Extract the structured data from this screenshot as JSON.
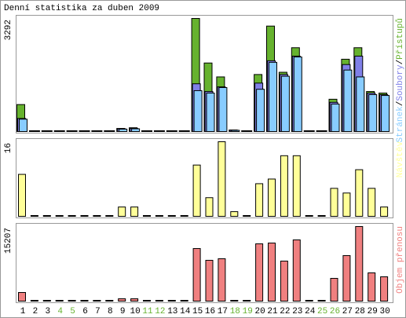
{
  "title": "Denní statistika za duben 2009",
  "chart_data": [
    {
      "type": "bar",
      "series": [
        {
          "name": "Přístupů",
          "color": "#66b22e",
          "values": [
            785,
            0,
            0,
            0,
            0,
            0,
            0,
            0,
            90,
            110,
            0,
            0,
            0,
            0,
            3292,
            1995,
            1590,
            45,
            0,
            1660,
            3070,
            1725,
            2440,
            0,
            0,
            940,
            2105,
            2440,
            1165,
            1120
          ]
        },
        {
          "name": "Soubory",
          "color": "#8080e8",
          "values": [
            380,
            0,
            0,
            0,
            0,
            0,
            0,
            0,
            80,
            90,
            0,
            0,
            0,
            0,
            1390,
            1165,
            1300,
            40,
            0,
            1410,
            2060,
            1660,
            2195,
            0,
            0,
            850,
            1950,
            2195,
            1120,
            1075
          ]
        },
        {
          "name": "Stránek",
          "color": "#88ccff",
          "values": [
            360,
            0,
            0,
            0,
            0,
            0,
            0,
            0,
            70,
            80,
            0,
            0,
            0,
            0,
            1190,
            1120,
            1280,
            35,
            0,
            1230,
            2015,
            1610,
            2170,
            0,
            0,
            800,
            1790,
            1590,
            1075,
            1050
          ]
        }
      ],
      "legend_separator": "/",
      "ylim": [
        0,
        3292
      ],
      "yticks": [
        3292
      ]
    },
    {
      "type": "bar",
      "series": [
        {
          "name": "Návštěv",
          "color": "#ffff99",
          "values": [
            9,
            0,
            0,
            0,
            0,
            0,
            0,
            0,
            2,
            2,
            0,
            0,
            0,
            0,
            11,
            4,
            16,
            1,
            0,
            7,
            8,
            13,
            13,
            0,
            0,
            6,
            5,
            10,
            6,
            2
          ]
        }
      ],
      "ylim": [
        0,
        16
      ],
      "yticks": [
        16
      ]
    },
    {
      "type": "bar",
      "categories": [
        "1",
        "2",
        "3",
        "4",
        "5",
        "6",
        "7",
        "8",
        "9",
        "10",
        "11",
        "12",
        "13",
        "14",
        "15",
        "16",
        "17",
        "18",
        "19",
        "20",
        "21",
        "22",
        "23",
        "24",
        "25",
        "26",
        "27",
        "28",
        "29",
        "30"
      ],
      "category_colors": [
        "#000000",
        "#000000",
        "#000000",
        "#66b22e",
        "#66b22e",
        "#000000",
        "#000000",
        "#000000",
        "#000000",
        "#000000",
        "#66b22e",
        "#66b22e",
        "#000000",
        "#000000",
        "#000000",
        "#000000",
        "#000000",
        "#66b22e",
        "#66b22e",
        "#000000",
        "#000000",
        "#000000",
        "#000000",
        "#000000",
        "#66b22e",
        "#66b22e",
        "#000000",
        "#000000",
        "#000000",
        "#000000"
      ],
      "series": [
        {
          "name": "Objem přenosu",
          "color": "#f08080",
          "values": [
            1760,
            0,
            0,
            0,
            0,
            0,
            0,
            0,
            480,
            480,
            0,
            0,
            0,
            0,
            10720,
            8320,
            8640,
            160,
            0,
            11680,
            11840,
            8160,
            12480,
            0,
            0,
            4640,
            9280,
            15207,
            5760,
            4960
          ]
        }
      ],
      "ylim": [
        0,
        15207
      ],
      "yticks": [
        15207
      ]
    }
  ]
}
